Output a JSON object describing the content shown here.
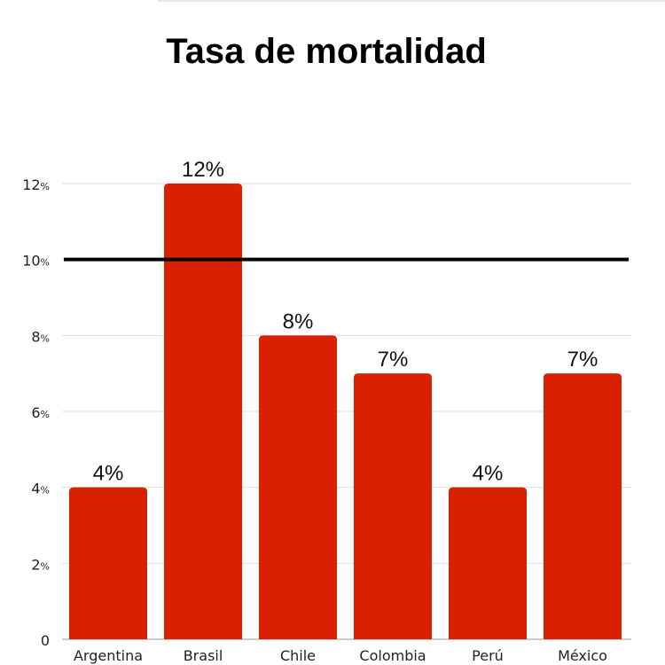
{
  "chart_data": {
    "type": "bar",
    "title": "Tasa de mortalidad",
    "categories": [
      "Argentina",
      "Brasil",
      "Chile",
      "Colombia",
      "Perú",
      "México"
    ],
    "values": [
      4,
      12,
      8,
      7,
      4,
      7
    ],
    "data_labels": [
      "4%",
      "12%",
      "8%",
      "7%",
      "4%",
      "7%"
    ],
    "ylim": [
      0,
      12
    ],
    "yticks": [
      {
        "num": "0",
        "unit": ""
      },
      {
        "num": "2",
        "unit": "%"
      },
      {
        "num": "4",
        "unit": "%"
      },
      {
        "num": "6",
        "unit": "%"
      },
      {
        "num": "8",
        "unit": "%"
      },
      {
        "num": "10",
        "unit": "%"
      },
      {
        "num": "12",
        "unit": "%"
      }
    ],
    "ytick_values": [
      0,
      2,
      4,
      6,
      8,
      10,
      12
    ],
    "reference_line": 10,
    "grid": true,
    "bar_color": "#d92000",
    "reference_color": "#000000"
  }
}
